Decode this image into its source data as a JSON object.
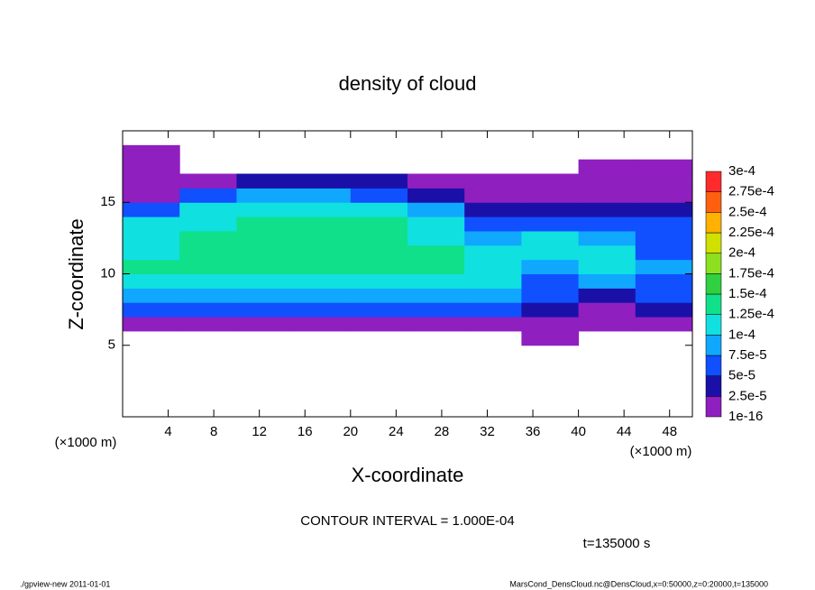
{
  "chart_data": {
    "type": "heatmap",
    "title": "density of cloud",
    "x_label": "X-coordinate",
    "y_label": "Z-coordinate",
    "x_unit": "(×1000 m)",
    "y_unit": "(×1000 m)",
    "contour_note": "CONTOUR INTERVAL = 1.000E-04",
    "time_note": "t=135000 s",
    "footer_left": "./gpview-new  2011-01-01",
    "footer_right": "MarsCond_DensCloud.nc@DensCloud,x=0:50000,z=0:20000,t=135000",
    "xlim": [
      0,
      50
    ],
    "ylim": [
      0,
      20
    ],
    "xticks": [
      4,
      8,
      12,
      16,
      20,
      24,
      28,
      32,
      36,
      40,
      44,
      48
    ],
    "yticks": [
      5,
      10,
      15
    ],
    "x": [
      2.5,
      7.5,
      12.5,
      17.5,
      22.5,
      27.5,
      32.5,
      37.5,
      42.5,
      47.5
    ],
    "y": [
      0.5,
      1.5,
      2.5,
      3.5,
      4.5,
      5.5,
      6.5,
      7.5,
      8.5,
      9.5,
      10.5,
      11.5,
      12.5,
      13.5,
      14.5,
      15.5,
      16.5,
      17.5,
      18.5,
      19.5
    ],
    "values": [
      [
        null,
        null,
        null,
        null,
        null,
        null,
        null,
        null,
        null,
        null
      ],
      [
        null,
        null,
        null,
        null,
        null,
        null,
        null,
        null,
        null,
        null
      ],
      [
        null,
        null,
        null,
        null,
        null,
        null,
        null,
        null,
        null,
        null
      ],
      [
        null,
        null,
        null,
        null,
        null,
        null,
        null,
        null,
        null,
        null
      ],
      [
        null,
        null,
        null,
        null,
        null,
        null,
        null,
        null,
        null,
        null
      ],
      [
        null,
        null,
        null,
        null,
        null,
        null,
        null,
        1e-05,
        null,
        null
      ],
      [
        2e-05,
        2e-05,
        2e-05,
        2e-05,
        2e-05,
        2e-05,
        2e-05,
        1e-05,
        1e-05,
        2e-05
      ],
      [
        6e-05,
        6e-05,
        6e-05,
        6e-05,
        6e-05,
        6e-05,
        6e-05,
        3e-05,
        2e-05,
        4e-05
      ],
      [
        9e-05,
        9e-05,
        9e-05,
        9e-05,
        9e-05,
        9e-05,
        8e-05,
        5e-05,
        4e-05,
        6e-05
      ],
      [
        0.00012,
        0.00012,
        0.00012,
        0.00012,
        0.00012,
        0.00012,
        0.0001,
        6e-05,
        8e-05,
        7e-05
      ],
      [
        0.00013,
        0.00013,
        0.00013,
        0.00013,
        0.00013,
        0.00013,
        0.000105,
        9e-05,
        0.000105,
        8e-05
      ],
      [
        0.00012,
        0.00013,
        0.00013,
        0.00013,
        0.00013,
        0.00013,
        0.0001,
        0.000105,
        0.00011,
        7e-05
      ],
      [
        0.000115,
        0.00013,
        0.00013,
        0.00013,
        0.00013,
        0.000115,
        8e-05,
        0.000105,
        8e-05,
        5e-05
      ],
      [
        0.0001,
        0.00012,
        0.000125,
        0.000125,
        0.000125,
        0.0001,
        6e-05,
        5e-05,
        5e-05,
        5e-05
      ],
      [
        6e-05,
        0.0001,
        0.000115,
        0.000115,
        0.000105,
        8e-05,
        4e-05,
        3e-05,
        3e-05,
        4e-05
      ],
      [
        2e-05,
        6e-05,
        9e-05,
        9e-05,
        7e-05,
        4e-05,
        2e-05,
        2e-05,
        2e-05,
        2e-05
      ],
      [
        1e-05,
        2e-05,
        3e-05,
        3e-05,
        3e-05,
        2e-05,
        1e-05,
        1e-05,
        1e-05,
        1e-05
      ],
      [
        1e-05,
        null,
        null,
        null,
        null,
        null,
        null,
        null,
        1e-05,
        1e-05
      ],
      [
        1e-05,
        null,
        null,
        null,
        null,
        null,
        null,
        null,
        null,
        null
      ],
      [
        null,
        null,
        null,
        null,
        null,
        null,
        null,
        null,
        null,
        null
      ]
    ],
    "levels": [
      {
        "value": 1e-16,
        "label": "1e-16"
      },
      {
        "value": 2.5e-05,
        "label": "2.5e-5"
      },
      {
        "value": 5e-05,
        "label": "5e-5"
      },
      {
        "value": 7.5e-05,
        "label": "7.5e-5"
      },
      {
        "value": 0.0001,
        "label": "1e-4"
      },
      {
        "value": 0.000125,
        "label": "1.25e-4"
      },
      {
        "value": 0.00015,
        "label": "1.5e-4"
      },
      {
        "value": 0.000175,
        "label": "1.75e-4"
      },
      {
        "value": 0.0002,
        "label": "2e-4"
      },
      {
        "value": 0.000225,
        "label": "2.25e-4"
      },
      {
        "value": 0.00025,
        "label": "2.5e-4"
      },
      {
        "value": 0.000275,
        "label": "2.75e-4"
      },
      {
        "value": 0.0003,
        "label": "3e-4"
      }
    ],
    "colors": [
      "#8f1fbf",
      "#1a10a8",
      "#1050ff",
      "#10a8ff",
      "#10e0e0",
      "#10e08a",
      "#30d040",
      "#8ce020",
      "#d0e000",
      "#ffb000",
      "#ff6010",
      "#ff2a2a"
    ]
  }
}
